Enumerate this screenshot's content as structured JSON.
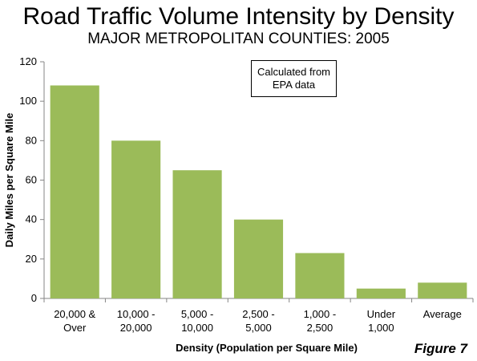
{
  "chart_data": {
    "type": "bar",
    "title": "Road Traffic Volume Intensity by Density",
    "subtitle": "MAJOR METROPOLITAN COUNTIES: 2005",
    "categories": [
      [
        "20,000 &",
        "Over"
      ],
      [
        "10,000 -",
        "20,000"
      ],
      [
        "5,000 -",
        "10,000"
      ],
      [
        "2,500 -",
        "5,000"
      ],
      [
        "1,000 -",
        "2,500"
      ],
      [
        "Under",
        "1,000"
      ],
      [
        "Average"
      ]
    ],
    "values": [
      108,
      80,
      65,
      40,
      23,
      5,
      8
    ],
    "ylim": [
      0,
      120
    ],
    "yticks": [
      0,
      20,
      40,
      60,
      80,
      100,
      120
    ],
    "xlabel": "Density (Population per Square Mile)",
    "ylabel": "Daily Miles per Square Mile",
    "annotation": [
      "Calculated from",
      "EPA data"
    ],
    "bar_color": "#9bbb59",
    "grid": false,
    "legend": "none"
  },
  "figure_label": "Figure 7"
}
